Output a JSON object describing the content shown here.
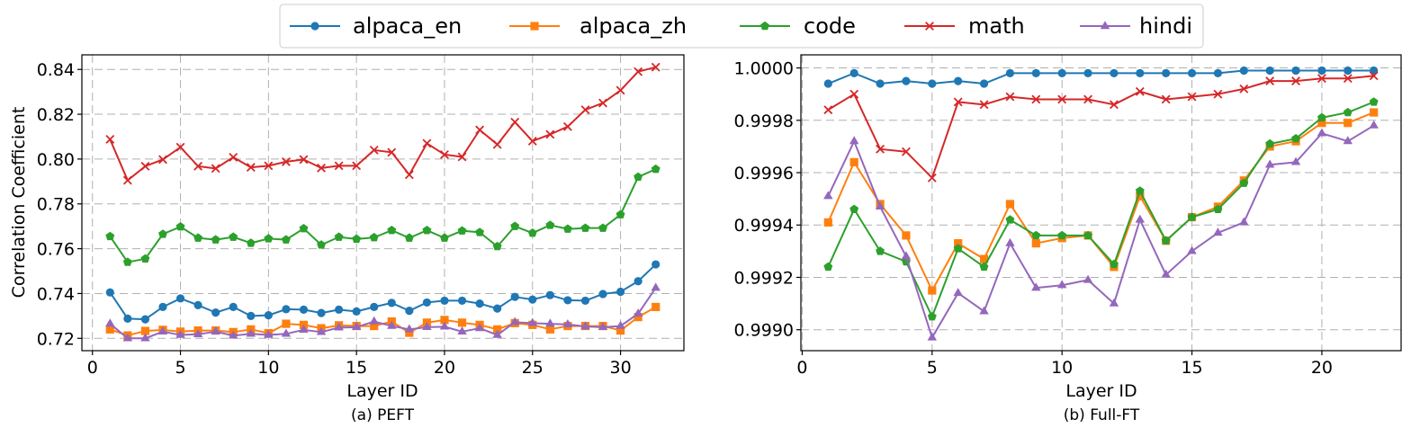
{
  "legend": {
    "placement": "top-center",
    "entries": [
      {
        "name": "alpaca_en",
        "color": "#1f77b4",
        "marker": "circle"
      },
      {
        "name": "alpaca_zh",
        "color": "#ff7f0e",
        "marker": "square"
      },
      {
        "name": "code",
        "color": "#2ca02c",
        "marker": "pentagon"
      },
      {
        "name": "math",
        "color": "#d62728",
        "marker": "x"
      },
      {
        "name": "hindi",
        "color": "#9467bd",
        "marker": "triangle"
      }
    ]
  },
  "chart_data": [
    {
      "type": "line",
      "title": "(a) PEFT",
      "xlabel": "Layer ID",
      "ylabel": "Correlation Coefficient",
      "xlim": [
        -0.6,
        33.6
      ],
      "ylim": [
        0.7145,
        0.8465
      ],
      "xticks": [
        0,
        5,
        10,
        15,
        20,
        25,
        30
      ],
      "yticks": [
        0.72,
        0.74,
        0.76,
        0.78,
        0.8,
        0.82,
        0.84
      ],
      "ytick_labels": [
        "0.72",
        "0.74",
        "0.76",
        "0.78",
        "0.80",
        "0.82",
        "0.84"
      ],
      "grid": true,
      "x": [
        1,
        2,
        3,
        4,
        5,
        6,
        7,
        8,
        9,
        10,
        11,
        12,
        13,
        14,
        15,
        16,
        17,
        18,
        19,
        20,
        21,
        22,
        23,
        24,
        25,
        26,
        27,
        28,
        29,
        30,
        31,
        32
      ],
      "series": [
        {
          "name": "alpaca_en",
          "values": [
            0.7405,
            0.7288,
            0.7285,
            0.734,
            0.7378,
            0.7348,
            0.7315,
            0.734,
            0.73,
            0.7303,
            0.733,
            0.7328,
            0.7313,
            0.7328,
            0.732,
            0.734,
            0.7358,
            0.7323,
            0.736,
            0.7368,
            0.7368,
            0.7355,
            0.7333,
            0.7385,
            0.7373,
            0.7393,
            0.737,
            0.7368,
            0.7398,
            0.7408,
            0.7455,
            0.753
          ]
        },
        {
          "name": "alpaca_zh",
          "values": [
            0.724,
            0.7213,
            0.7233,
            0.7238,
            0.723,
            0.7235,
            0.7235,
            0.7228,
            0.724,
            0.7223,
            0.7265,
            0.726,
            0.7245,
            0.7258,
            0.7255,
            0.7255,
            0.7275,
            0.7225,
            0.727,
            0.7282,
            0.727,
            0.726,
            0.724,
            0.7268,
            0.726,
            0.724,
            0.7255,
            0.7255,
            0.7255,
            0.7235,
            0.7295,
            0.734
          ]
        },
        {
          "name": "code",
          "values": [
            0.7655,
            0.754,
            0.7555,
            0.7665,
            0.7698,
            0.7648,
            0.764,
            0.7652,
            0.7625,
            0.7645,
            0.764,
            0.769,
            0.7617,
            0.7652,
            0.7643,
            0.765,
            0.7682,
            0.7648,
            0.7682,
            0.7648,
            0.768,
            0.7673,
            0.761,
            0.77,
            0.767,
            0.7705,
            0.7688,
            0.7692,
            0.7692,
            0.7752,
            0.792,
            0.7955
          ]
        },
        {
          "name": "math",
          "values": [
            0.8088,
            0.7905,
            0.7968,
            0.7998,
            0.8053,
            0.7968,
            0.7958,
            0.8008,
            0.7963,
            0.797,
            0.7988,
            0.7998,
            0.796,
            0.797,
            0.797,
            0.804,
            0.803,
            0.793,
            0.807,
            0.802,
            0.801,
            0.813,
            0.8065,
            0.8165,
            0.808,
            0.811,
            0.8145,
            0.822,
            0.825,
            0.8307,
            0.839,
            0.841
          ]
        },
        {
          "name": "hindi",
          "values": [
            0.7265,
            0.72,
            0.72,
            0.723,
            0.7215,
            0.7218,
            0.723,
            0.7212,
            0.722,
            0.7215,
            0.722,
            0.7238,
            0.7228,
            0.7248,
            0.725,
            0.7275,
            0.7255,
            0.724,
            0.725,
            0.7252,
            0.723,
            0.7245,
            0.7215,
            0.7272,
            0.7268,
            0.7265,
            0.7262,
            0.7253,
            0.725,
            0.7255,
            0.731,
            0.7425
          ]
        }
      ]
    },
    {
      "type": "line",
      "title": "(b) Full-FT",
      "xlabel": "Layer ID",
      "ylabel": "",
      "xlim": [
        -0.05,
        23.05
      ],
      "ylim": [
        0.99892,
        1.00005
      ],
      "xticks": [
        0,
        5,
        10,
        15,
        20
      ],
      "yticks": [
        0.999,
        0.9992,
        0.9994,
        0.9996,
        0.9998,
        1.0
      ],
      "ytick_labels": [
        "0.9990",
        "0.9992",
        "0.9994",
        "0.9996",
        "0.9998",
        "1.0000"
      ],
      "grid": true,
      "x": [
        1,
        2,
        3,
        4,
        5,
        6,
        7,
        8,
        9,
        10,
        11,
        12,
        13,
        14,
        15,
        16,
        17,
        18,
        19,
        20,
        21,
        22
      ],
      "series": [
        {
          "name": "alpaca_en",
          "values": [
            0.99994,
            0.99998,
            0.99994,
            0.99995,
            0.99994,
            0.99995,
            0.99994,
            0.99998,
            0.99998,
            0.99998,
            0.99998,
            0.99998,
            0.99998,
            0.99998,
            0.99998,
            0.99998,
            0.99999,
            0.99999,
            0.99999,
            0.99999,
            0.99999,
            0.99999
          ]
        },
        {
          "name": "alpaca_zh",
          "values": [
            0.99941,
            0.99964,
            0.99948,
            0.99936,
            0.99915,
            0.99933,
            0.99927,
            0.99948,
            0.99933,
            0.99935,
            0.99936,
            0.99924,
            0.99951,
            0.99934,
            0.99943,
            0.99947,
            0.99957,
            0.9997,
            0.99972,
            0.99979,
            0.99979,
            0.99983
          ]
        },
        {
          "name": "code",
          "values": [
            0.99924,
            0.99946,
            0.9993,
            0.99926,
            0.99905,
            0.99931,
            0.99924,
            0.99942,
            0.99936,
            0.99936,
            0.99936,
            0.99925,
            0.99953,
            0.99934,
            0.99943,
            0.99946,
            0.99956,
            0.99971,
            0.99973,
            0.99981,
            0.99983,
            0.99987
          ]
        },
        {
          "name": "math",
          "values": [
            0.99984,
            0.9999,
            0.99969,
            0.99968,
            0.99958,
            0.99987,
            0.99986,
            0.99989,
            0.99988,
            0.99988,
            0.99988,
            0.99986,
            0.99991,
            0.99988,
            0.99989,
            0.9999,
            0.99992,
            0.99995,
            0.99995,
            0.99996,
            0.99996,
            0.99997
          ]
        },
        {
          "name": "hindi",
          "values": [
            0.99951,
            0.99972,
            0.99947,
            0.99928,
            0.99897,
            0.99914,
            0.99907,
            0.99933,
            0.99916,
            0.99917,
            0.99919,
            0.9991,
            0.99942,
            0.99921,
            0.9993,
            0.99937,
            0.99941,
            0.99963,
            0.99964,
            0.99975,
            0.99972,
            0.99978
          ]
        }
      ]
    }
  ]
}
